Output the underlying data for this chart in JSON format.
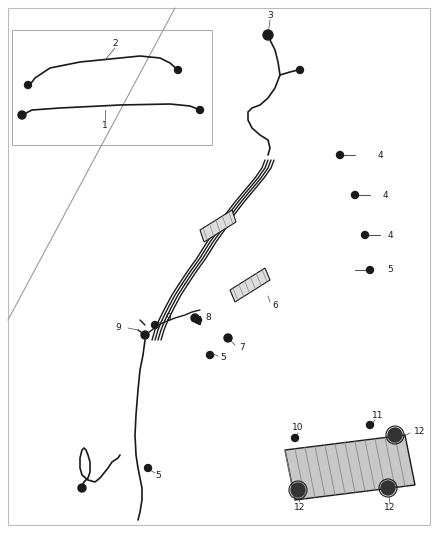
{
  "bg_color": "#ffffff",
  "line_color": "#1a1a1a",
  "fig_width": 4.38,
  "fig_height": 5.33,
  "dpi": 100,
  "fs": 6.5
}
